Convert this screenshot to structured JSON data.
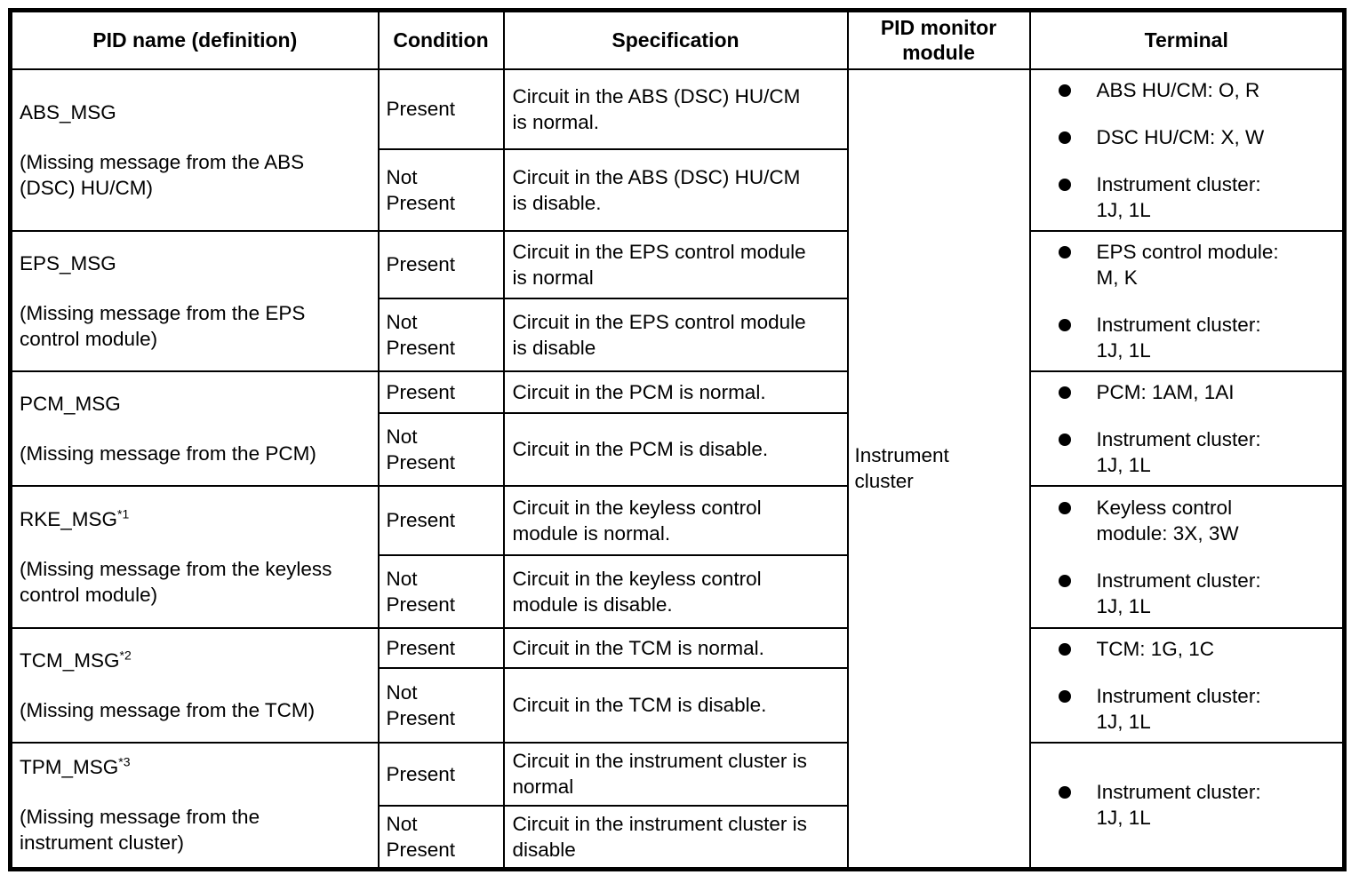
{
  "table": {
    "headers": {
      "pid_name": "PID name (definition)",
      "condition": "Condition",
      "specification": "Specification",
      "pid_monitor_module": "PID monitor module",
      "terminal": "Terminal"
    },
    "pid_monitor_module": "Instrument\ncluster",
    "rows": [
      {
        "name": "ABS_MSG",
        "sup": "",
        "definition": "(Missing message from the ABS\n(DSC) HU/CM)",
        "conditions": [
          {
            "condition": "Present",
            "specification": "Circuit in the ABS (DSC) HU/CM\nis normal."
          },
          {
            "condition": "Not\nPresent",
            "specification": "Circuit in the ABS (DSC) HU/CM\nis disable."
          }
        ],
        "terminals": [
          "ABS HU/CM: O, R",
          "DSC HU/CM: X, W",
          "Instrument cluster:\n1J, 1L"
        ]
      },
      {
        "name": "EPS_MSG",
        "sup": "",
        "definition": "(Missing message from the EPS\ncontrol module)",
        "conditions": [
          {
            "condition": "Present",
            "specification": "Circuit in the EPS control module\nis normal"
          },
          {
            "condition": "Not\nPresent",
            "specification": "Circuit in the EPS control module\nis disable"
          }
        ],
        "terminals": [
          "EPS control module:\nM, K",
          "Instrument cluster:\n1J, 1L"
        ]
      },
      {
        "name": "PCM_MSG",
        "sup": "",
        "definition": "(Missing message from the PCM)",
        "conditions": [
          {
            "condition": "Present",
            "specification": "Circuit in the PCM is normal."
          },
          {
            "condition": "Not\nPresent",
            "specification": "Circuit in the PCM is disable."
          }
        ],
        "terminals": [
          "PCM: 1AM, 1AI",
          "Instrument cluster:\n1J, 1L"
        ]
      },
      {
        "name": "RKE_MSG",
        "sup": "*1",
        "definition": "(Missing message from the keyless\ncontrol module)",
        "conditions": [
          {
            "condition": "Present",
            "specification": "Circuit in the keyless control\nmodule is normal."
          },
          {
            "condition": "Not\nPresent",
            "specification": "Circuit in the keyless control\nmodule is disable."
          }
        ],
        "terminals": [
          "Keyless control\nmodule: 3X, 3W",
          "Instrument cluster:\n1J, 1L"
        ]
      },
      {
        "name": "TCM_MSG",
        "sup": "*2",
        "definition": "(Missing message from the TCM)",
        "conditions": [
          {
            "condition": "Present",
            "specification": "Circuit in the TCM is normal."
          },
          {
            "condition": "Not\nPresent",
            "specification": "Circuit in the TCM is disable."
          }
        ],
        "terminals": [
          "TCM: 1G, 1C",
          "Instrument cluster:\n1J, 1L"
        ]
      },
      {
        "name": "TPM_MSG",
        "sup": "*3",
        "definition": "(Missing message from the\ninstrument cluster)",
        "conditions": [
          {
            "condition": "Present",
            "specification": "Circuit in the instrument cluster is\nnormal"
          },
          {
            "condition": "Not\nPresent",
            "specification": "Circuit in the instrument cluster is\ndisable"
          }
        ],
        "terminals": [
          "Instrument cluster:\n1J, 1L"
        ]
      }
    ]
  }
}
